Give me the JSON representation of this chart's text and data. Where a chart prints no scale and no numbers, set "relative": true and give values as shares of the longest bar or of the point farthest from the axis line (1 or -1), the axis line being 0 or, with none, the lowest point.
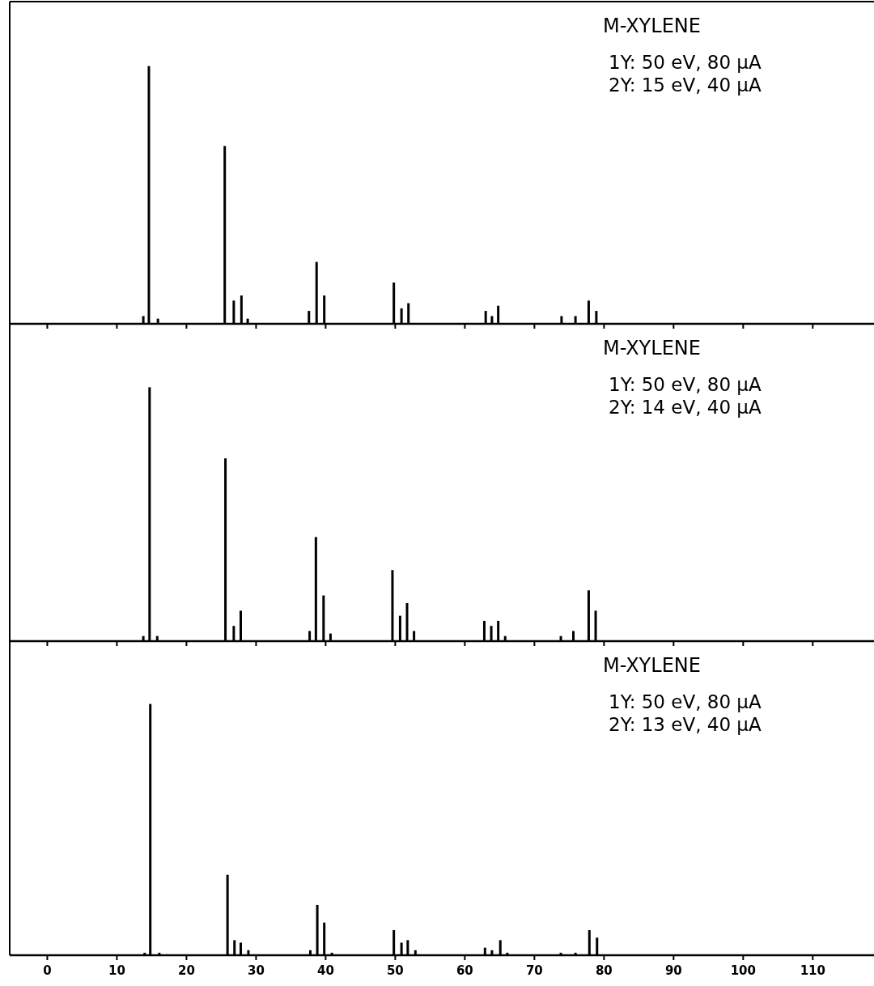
{
  "chart_data": [
    {
      "type": "bar",
      "title": "M-XYLENE",
      "annotations": [
        "1Y: 50 eV, 80 μA",
        "2Y: 15 eV, 40 μA"
      ],
      "relative": true,
      "color": "#000000",
      "xlim": [
        -5.4,
        118.8
      ],
      "xticks": [
        0,
        10,
        20,
        30,
        40,
        50,
        60,
        70,
        80,
        90,
        100,
        110
      ],
      "tick_labels": false,
      "grid": false,
      "x": [
        13.8,
        14.6,
        15.9,
        25.5,
        26.8,
        27.9,
        28.8,
        37.6,
        38.7,
        39.8,
        49.8,
        50.9,
        51.9,
        63.0,
        63.9,
        64.8,
        73.9,
        75.9,
        77.8,
        78.9
      ],
      "values": [
        0.03,
        1,
        0.02,
        0.69,
        0.09,
        0.11,
        0.02,
        0.05,
        0.24,
        0.11,
        0.16,
        0.06,
        0.08,
        0.05,
        0.03,
        0.07,
        0.03,
        0.03,
        0.09,
        0.05
      ]
    },
    {
      "type": "bar",
      "title": "M-XYLENE",
      "annotations": [
        "1Y: 50 eV, 80 μA",
        "2Y: 14 eV, 40 μA"
      ],
      "relative": true,
      "color": "#000000",
      "xlim": [
        -5.4,
        118.8
      ],
      "xticks": [
        0,
        10,
        20,
        30,
        40,
        50,
        60,
        70,
        80,
        90,
        100,
        110
      ],
      "tick_labels": false,
      "grid": false,
      "x": [
        13.8,
        14.7,
        15.8,
        25.6,
        26.8,
        27.8,
        37.7,
        38.6,
        39.7,
        40.7,
        49.6,
        50.7,
        51.7,
        52.7,
        62.8,
        63.8,
        64.8,
        65.8,
        73.8,
        75.6,
        77.8,
        78.8
      ],
      "values": [
        0.02,
        1,
        0.02,
        0.72,
        0.06,
        0.12,
        0.04,
        0.41,
        0.18,
        0.03,
        0.28,
        0.1,
        0.15,
        0.04,
        0.08,
        0.06,
        0.08,
        0.02,
        0.02,
        0.04,
        0.2,
        0.12
      ]
    },
    {
      "type": "bar",
      "title": "M-XYLENE",
      "annotations": [
        "1Y: 50 eV, 80 μA",
        "2Y: 13 eV, 40 μA"
      ],
      "relative": true,
      "color": "#000000",
      "xlim": [
        -5.4,
        118.8
      ],
      "xticks": [
        0,
        10,
        20,
        30,
        40,
        50,
        60,
        70,
        80,
        90,
        100,
        110
      ],
      "tick_labels": "x",
      "grid": false,
      "x": [
        14.0,
        14.8,
        16.1,
        25.9,
        26.9,
        27.8,
        28.9,
        37.8,
        38.8,
        39.8,
        40.9,
        49.8,
        50.9,
        51.8,
        52.9,
        62.9,
        63.9,
        65.1,
        66.1,
        73.8,
        75.9,
        77.9,
        79.0
      ],
      "values": [
        0.01,
        1,
        0.01,
        0.32,
        0.06,
        0.05,
        0.02,
        0.02,
        0.2,
        0.13,
        0.01,
        0.1,
        0.05,
        0.06,
        0.02,
        0.03,
        0.02,
        0.06,
        0.01,
        0.01,
        0.01,
        0.1,
        0.07
      ]
    }
  ]
}
